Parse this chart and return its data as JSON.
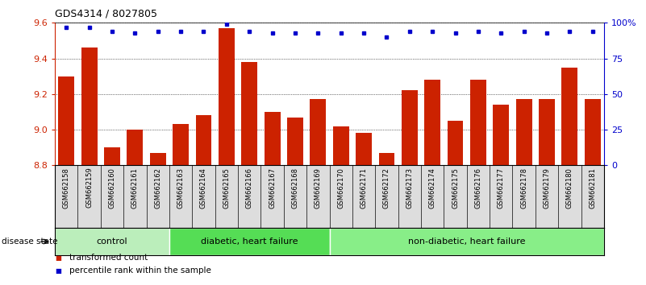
{
  "title": "GDS4314 / 8027805",
  "samples": [
    "GSM662158",
    "GSM662159",
    "GSM662160",
    "GSM662161",
    "GSM662162",
    "GSM662163",
    "GSM662164",
    "GSM662165",
    "GSM662166",
    "GSM662167",
    "GSM662168",
    "GSM662169",
    "GSM662170",
    "GSM662171",
    "GSM662172",
    "GSM662173",
    "GSM662174",
    "GSM662175",
    "GSM662176",
    "GSM662177",
    "GSM662178",
    "GSM662179",
    "GSM662180",
    "GSM662181"
  ],
  "bar_values": [
    9.3,
    9.46,
    8.9,
    9.0,
    8.87,
    9.03,
    9.08,
    9.57,
    9.38,
    9.1,
    9.07,
    9.17,
    9.02,
    8.98,
    8.87,
    9.22,
    9.28,
    9.05,
    9.28,
    9.14,
    9.17,
    9.17,
    9.35,
    9.17
  ],
  "percentile_values": [
    97,
    97,
    94,
    93,
    94,
    94,
    94,
    99,
    94,
    93,
    93,
    93,
    93,
    93,
    90,
    94,
    94,
    93,
    94,
    93,
    94,
    93,
    94,
    94
  ],
  "bar_color": "#cc2200",
  "percentile_color": "#0000cc",
  "ylim_left": [
    8.8,
    9.6
  ],
  "ylim_right": [
    0,
    100
  ],
  "yticks_left": [
    8.8,
    9.0,
    9.2,
    9.4,
    9.6
  ],
  "yticks_right": [
    0,
    25,
    50,
    75,
    100
  ],
  "ytick_labels_right": [
    "0",
    "25",
    "50",
    "75",
    "100%"
  ],
  "groups": [
    {
      "label": "control",
      "start": 0,
      "end": 4,
      "color": "#bbeebb"
    },
    {
      "label": "diabetic, heart failure",
      "start": 5,
      "end": 11,
      "color": "#55dd55"
    },
    {
      "label": "non-diabetic, heart failure",
      "start": 12,
      "end": 23,
      "color": "#88ee88"
    }
  ],
  "disease_state_label": "disease state",
  "legend_bar_label": "transformed count",
  "legend_pct_label": "percentile rank within the sample",
  "cell_bg": "#dddddd",
  "plot_bg": "#ffffff",
  "bar_bottom": 8.8
}
